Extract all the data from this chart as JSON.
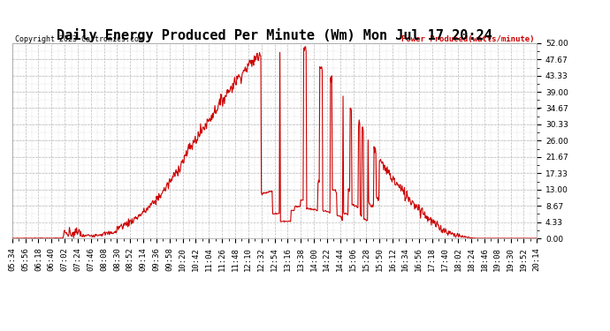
{
  "title": "Daily Energy Produced Per Minute (Wm) Mon Jul 17 20:24",
  "copyright": "Copyright 2023 Cartronics.com",
  "legend_label": "Power Produced(watts/minute)",
  "y_ticks": [
    0.0,
    4.33,
    8.67,
    13.0,
    17.33,
    21.67,
    26.0,
    30.33,
    34.67,
    39.0,
    43.33,
    47.67,
    52.0
  ],
  "y_max": 52.0,
  "y_min": 0.0,
  "line_color": "#cc0000",
  "grid_color": "#bbbbbb",
  "background_color": "#ffffff",
  "title_fontsize": 11,
  "axis_fontsize": 6.5,
  "x_tick_labels": [
    "05:34",
    "05:56",
    "06:18",
    "06:40",
    "07:02",
    "07:24",
    "07:46",
    "08:08",
    "08:30",
    "08:52",
    "09:14",
    "09:36",
    "09:58",
    "10:20",
    "10:42",
    "11:04",
    "11:26",
    "11:48",
    "12:10",
    "12:32",
    "12:54",
    "13:16",
    "13:38",
    "14:00",
    "14:22",
    "14:44",
    "15:06",
    "15:28",
    "15:50",
    "16:12",
    "16:34",
    "16:56",
    "17:18",
    "17:40",
    "18:02",
    "18:24",
    "18:46",
    "19:08",
    "19:30",
    "19:52",
    "20:14"
  ]
}
